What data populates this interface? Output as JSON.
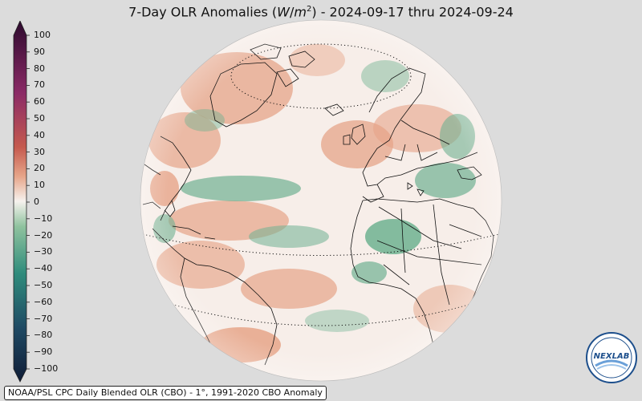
{
  "title": {
    "prefix": "7-Day OLR Anomalies (",
    "unit_w": "W",
    "unit_slash": "/",
    "unit_m": "m",
    "unit_exp": "2",
    "suffix": ") - 2024-09-17 thru 2024-09-24"
  },
  "colorbar": {
    "ticks": [
      "100",
      "90",
      "80",
      "70",
      "60",
      "50",
      "40",
      "30",
      "20",
      "10",
      "0",
      "−10",
      "−20",
      "−30",
      "−40",
      "−50",
      "−60",
      "−70",
      "−80",
      "−90",
      "−100"
    ],
    "colors": {
      "max": "#2d0a2e",
      "high": "#8b2a66",
      "warm": "#c55a4e",
      "mild": "#e6a488",
      "neutral": "#f6f2ee",
      "cool": "#8fc29e",
      "cold": "#2f8c7c",
      "deep": "#1f4a64",
      "min": "#0f1c36"
    }
  },
  "map": {
    "projection": "orthographic",
    "ocean_color": "#f7eee9",
    "positive_color": "#e6a488",
    "negative_color": "#6fb191",
    "coastline_color": "#111111"
  },
  "footer": {
    "text": "NOAA/PSL CPC Daily Blended OLR (CBO) - 1°, 1991-2020 CBO Anomaly"
  },
  "logo": {
    "text": "NEXLAB",
    "icon": "nexlab-logo-icon"
  }
}
